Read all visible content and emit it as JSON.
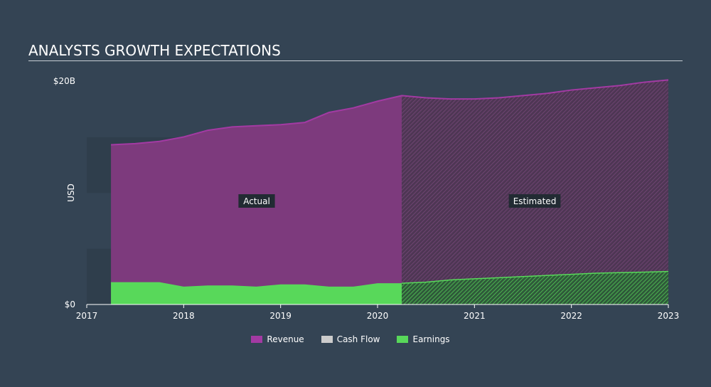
{
  "title": "ANALYSTS GROWTH EXPECTATIONS",
  "colors": {
    "background": "#344454",
    "revenue": "#7d3a7d",
    "revenue_line": "#a33aa3",
    "cash_flow": "#cccccc",
    "earnings": "#58d85a",
    "earnings_line": "#58d85a"
  },
  "legend": [
    {
      "label": "Revenue",
      "color": "#a33aa3"
    },
    {
      "label": "Cash Flow",
      "color": "#cccccc"
    },
    {
      "label": "Earnings",
      "color": "#58d85a"
    }
  ],
  "annotations": {
    "actual": "Actual",
    "estimated": "Estimated"
  },
  "chart_data": {
    "type": "area",
    "title": "ANALYSTS GROWTH EXPECTATIONS",
    "ylabel": "USD",
    "xlabel": "",
    "ylim": [
      0,
      20
    ],
    "xlim": [
      2017.0,
      2023.0
    ],
    "y_ticks": [
      {
        "value": 0,
        "label": "$0"
      },
      {
        "value": 20,
        "label": "$20B"
      }
    ],
    "x_ticks": [
      "2017",
      "2018",
      "2019",
      "2020",
      "2021",
      "2022",
      "2023"
    ],
    "actual_end": 2020.25,
    "series": [
      {
        "name": "Revenue",
        "x": [
          2017.25,
          2017.5,
          2017.75,
          2018.0,
          2018.25,
          2018.5,
          2018.75,
          2019.0,
          2019.25,
          2019.5,
          2019.75,
          2020.0,
          2020.25,
          2020.5,
          2020.75,
          2021.0,
          2021.25,
          2021.5,
          2021.75,
          2022.0,
          2022.25,
          2022.5,
          2022.75,
          2023.0
        ],
        "values": [
          14.3,
          14.4,
          14.6,
          15.0,
          15.6,
          15.9,
          16.0,
          16.1,
          16.3,
          17.2,
          17.6,
          18.2,
          18.7,
          18.5,
          18.4,
          18.4,
          18.5,
          18.7,
          18.9,
          19.2,
          19.4,
          19.6,
          19.9,
          20.1
        ]
      },
      {
        "name": "Earnings",
        "x": [
          2017.25,
          2017.5,
          2017.75,
          2018.0,
          2018.25,
          2018.5,
          2018.75,
          2019.0,
          2019.25,
          2019.5,
          2019.75,
          2020.0,
          2020.25,
          2020.5,
          2020.75,
          2021.0,
          2021.25,
          2021.5,
          2021.75,
          2022.0,
          2022.25,
          2022.5,
          2022.75,
          2023.0
        ],
        "values": [
          2.0,
          2.0,
          2.0,
          1.6,
          1.7,
          1.7,
          1.6,
          1.8,
          1.8,
          1.6,
          1.6,
          1.9,
          1.9,
          2.0,
          2.2,
          2.3,
          2.4,
          2.5,
          2.6,
          2.7,
          2.8,
          2.85,
          2.9,
          2.95
        ]
      }
    ],
    "grid": false,
    "legend_position": "bottom-center"
  }
}
